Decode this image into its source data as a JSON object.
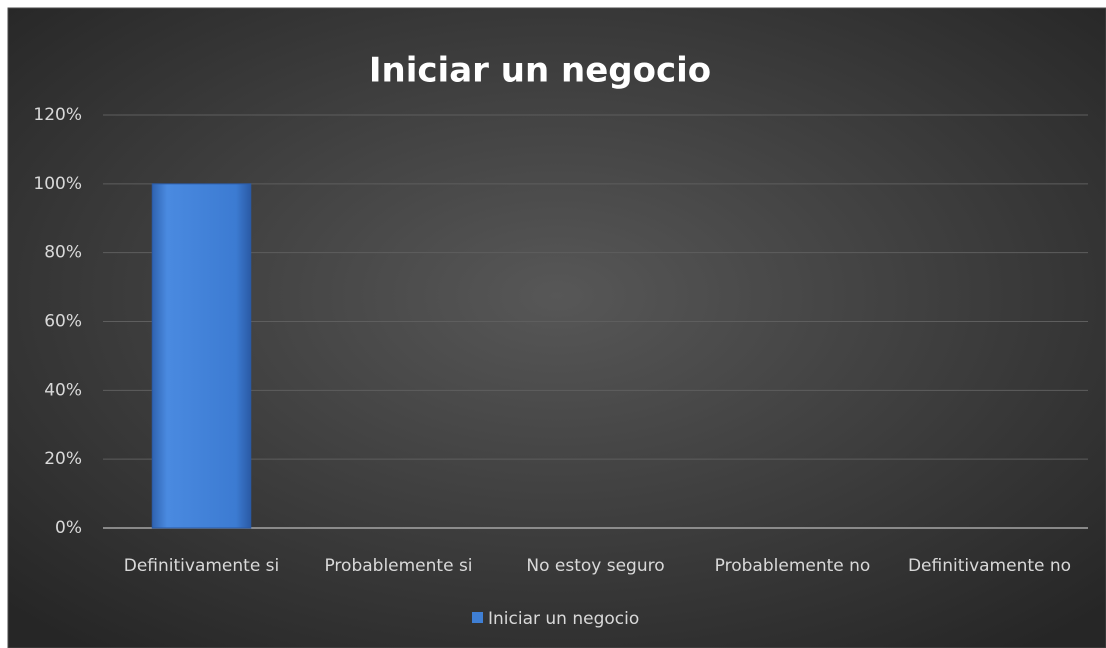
{
  "chart_data": {
    "type": "bar",
    "title": "Iniciar un negocio",
    "categories": [
      "Definitivamente si",
      "Probablemente si",
      "No estoy seguro",
      "Probablemente no",
      "Definitivamente no"
    ],
    "series": [
      {
        "name": "Iniciar un negocio",
        "color": "#3f7fd4",
        "values": [
          100,
          0,
          0,
          0,
          0
        ]
      }
    ],
    "ylim": [
      0,
      120
    ],
    "yticks": [
      {
        "value": 0,
        "label": "0%"
      },
      {
        "value": 20,
        "label": "20%"
      },
      {
        "value": 40,
        "label": "40%"
      },
      {
        "value": 60,
        "label": "60%"
      },
      {
        "value": 80,
        "label": "80%"
      },
      {
        "value": 100,
        "label": "100%"
      },
      {
        "value": 120,
        "label": "120%"
      }
    ],
    "grid": true,
    "legend": "bottom"
  }
}
